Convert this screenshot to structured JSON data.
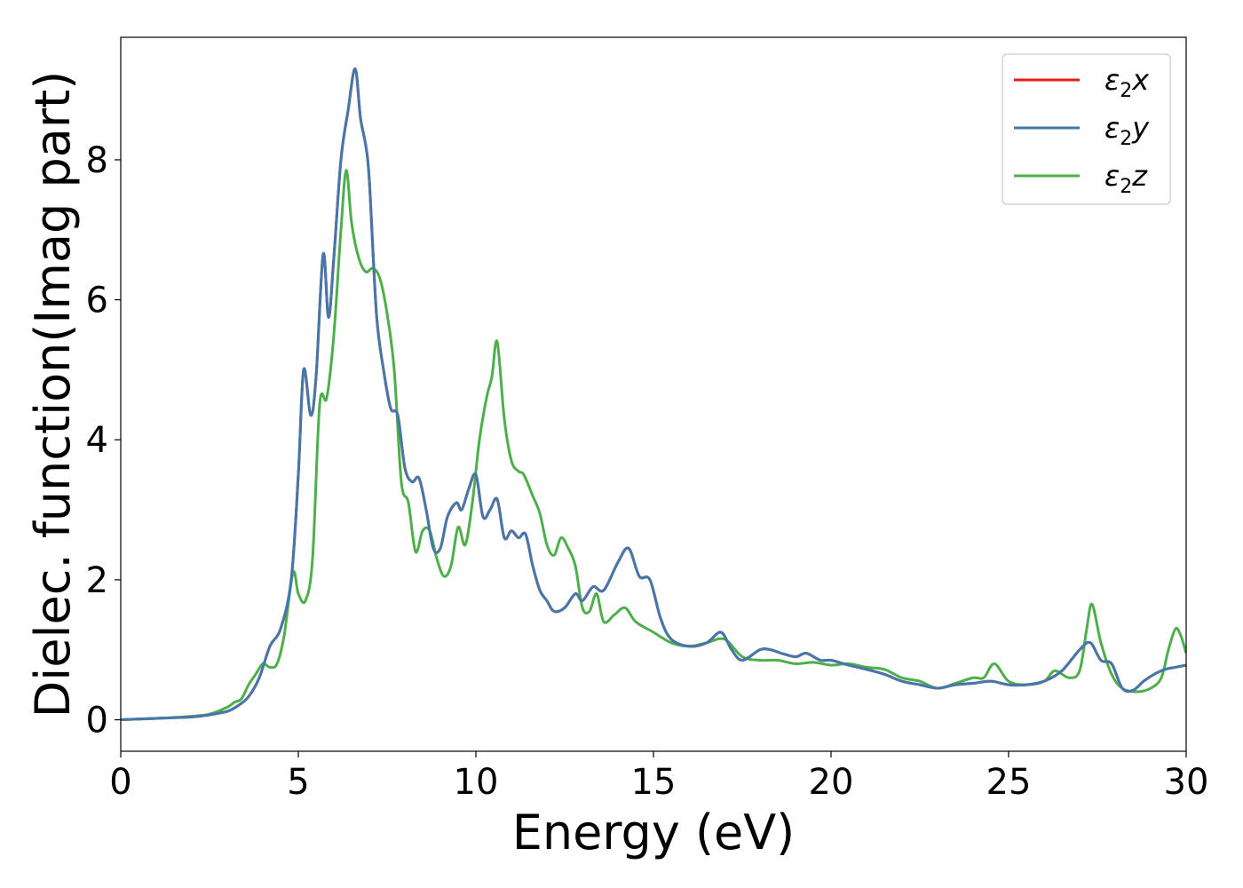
{
  "chart_data": {
    "type": "line",
    "xlabel": "Energy (eV)",
    "ylabel": "Dielec. function(Imag part)",
    "xlim": [
      0,
      30
    ],
    "ylim": [
      -0.45,
      9.75
    ],
    "xticks": [
      0,
      5,
      10,
      15,
      20,
      25,
      30
    ],
    "yticks": [
      0,
      2,
      4,
      6,
      8
    ],
    "grid": false,
    "legend_position": "top-right",
    "series": [
      {
        "name": "ε2x",
        "color": "#e41a1c",
        "legend_label": {
          "main": "ε",
          "sub": "2",
          "tail": "x"
        },
        "x": [
          0,
          1,
          2,
          2.5,
          3,
          3.3,
          3.6,
          3.9,
          4.2,
          4.5,
          4.8,
          5.0,
          5.15,
          5.35,
          5.5,
          5.7,
          5.85,
          6.0,
          6.2,
          6.4,
          6.6,
          6.75,
          6.9,
          7.0,
          7.2,
          7.4,
          7.6,
          7.8,
          8.0,
          8.2,
          8.4,
          8.6,
          8.8,
          9.0,
          9.2,
          9.45,
          9.6,
          9.8,
          10.0,
          10.2,
          10.4,
          10.6,
          10.8,
          11.0,
          11.2,
          11.4,
          11.6,
          11.8,
          12.0,
          12.2,
          12.5,
          12.8,
          13.0,
          13.3,
          13.6,
          14.0,
          14.3,
          14.6,
          14.9,
          15.2,
          15.5,
          16.0,
          16.5,
          16.9,
          17.2,
          17.5,
          18.0,
          18.3,
          18.6,
          19.0,
          19.3,
          19.7,
          20.0,
          20.5,
          21.0,
          21.5,
          22.0,
          22.5,
          23.0,
          23.5,
          24.0,
          24.5,
          25.0,
          25.5,
          26.0,
          26.5,
          27.0,
          27.3,
          27.6,
          27.9,
          28.2,
          28.5,
          28.8,
          29.1,
          29.4,
          29.7,
          30.0
        ],
        "values": [
          0,
          0.02,
          0.04,
          0.07,
          0.12,
          0.2,
          0.33,
          0.6,
          1.05,
          1.3,
          2.0,
          3.5,
          5.0,
          4.35,
          4.9,
          6.65,
          5.75,
          6.6,
          8.0,
          8.7,
          9.3,
          8.6,
          8.2,
          7.7,
          5.8,
          5.0,
          4.45,
          4.35,
          3.6,
          3.4,
          3.45,
          3.0,
          2.45,
          2.45,
          2.9,
          3.1,
          3.0,
          3.3,
          3.5,
          2.9,
          3.0,
          3.15,
          2.6,
          2.7,
          2.6,
          2.65,
          2.2,
          1.85,
          1.7,
          1.55,
          1.6,
          1.8,
          1.7,
          1.9,
          1.85,
          2.25,
          2.45,
          2.05,
          2.0,
          1.45,
          1.15,
          1.05,
          1.1,
          1.25,
          1.0,
          0.85,
          1.0,
          1.0,
          0.95,
          0.9,
          0.95,
          0.85,
          0.85,
          0.78,
          0.72,
          0.65,
          0.55,
          0.5,
          0.45,
          0.5,
          0.52,
          0.55,
          0.5,
          0.5,
          0.55,
          0.7,
          1.0,
          1.1,
          0.85,
          0.8,
          0.45,
          0.42,
          0.55,
          0.65,
          0.72,
          0.75,
          0.78
        ]
      },
      {
        "name": "ε2y",
        "color": "#4477aa",
        "legend_label": {
          "main": "ε",
          "sub": "2",
          "tail": "y"
        },
        "x": [
          0,
          1,
          2,
          2.5,
          3,
          3.3,
          3.6,
          3.9,
          4.2,
          4.5,
          4.8,
          5.0,
          5.15,
          5.35,
          5.5,
          5.7,
          5.85,
          6.0,
          6.2,
          6.4,
          6.6,
          6.75,
          6.9,
          7.0,
          7.2,
          7.4,
          7.6,
          7.8,
          8.0,
          8.2,
          8.4,
          8.6,
          8.8,
          9.0,
          9.2,
          9.45,
          9.6,
          9.8,
          10.0,
          10.2,
          10.4,
          10.6,
          10.8,
          11.0,
          11.2,
          11.4,
          11.6,
          11.8,
          12.0,
          12.2,
          12.5,
          12.8,
          13.0,
          13.3,
          13.6,
          14.0,
          14.3,
          14.6,
          14.9,
          15.2,
          15.5,
          16.0,
          16.5,
          16.9,
          17.2,
          17.5,
          18.0,
          18.3,
          18.6,
          19.0,
          19.3,
          19.7,
          20.0,
          20.5,
          21.0,
          21.5,
          22.0,
          22.5,
          23.0,
          23.5,
          24.0,
          24.5,
          25.0,
          25.5,
          26.0,
          26.5,
          27.0,
          27.3,
          27.6,
          27.9,
          28.2,
          28.5,
          28.8,
          29.1,
          29.4,
          29.7,
          30.0
        ],
        "values": [
          0,
          0.02,
          0.04,
          0.07,
          0.12,
          0.2,
          0.33,
          0.6,
          1.05,
          1.3,
          2.0,
          3.5,
          5.0,
          4.35,
          4.9,
          6.65,
          5.75,
          6.6,
          8.0,
          8.7,
          9.3,
          8.6,
          8.2,
          7.7,
          5.8,
          5.0,
          4.45,
          4.35,
          3.6,
          3.4,
          3.45,
          3.0,
          2.45,
          2.45,
          2.9,
          3.1,
          3.0,
          3.3,
          3.5,
          2.9,
          3.0,
          3.15,
          2.6,
          2.7,
          2.6,
          2.65,
          2.2,
          1.85,
          1.7,
          1.55,
          1.6,
          1.8,
          1.7,
          1.9,
          1.85,
          2.25,
          2.45,
          2.05,
          2.0,
          1.45,
          1.15,
          1.05,
          1.1,
          1.25,
          1.0,
          0.85,
          1.0,
          1.0,
          0.95,
          0.9,
          0.95,
          0.85,
          0.85,
          0.78,
          0.72,
          0.65,
          0.55,
          0.5,
          0.45,
          0.5,
          0.52,
          0.55,
          0.5,
          0.5,
          0.55,
          0.7,
          1.0,
          1.1,
          0.85,
          0.8,
          0.45,
          0.42,
          0.55,
          0.65,
          0.72,
          0.75,
          0.78
        ]
      },
      {
        "name": "ε2z",
        "color": "#4daf4a",
        "legend_label": {
          "main": "ε",
          "sub": "2",
          "tail": "z"
        },
        "x": [
          0,
          1,
          2,
          2.5,
          3.0,
          3.2,
          3.4,
          3.6,
          3.8,
          4.0,
          4.2,
          4.4,
          4.6,
          4.85,
          5.0,
          5.2,
          5.4,
          5.6,
          5.8,
          6.0,
          6.2,
          6.35,
          6.5,
          6.7,
          6.9,
          7.1,
          7.3,
          7.5,
          7.7,
          7.9,
          8.1,
          8.3,
          8.5,
          8.7,
          8.9,
          9.1,
          9.3,
          9.5,
          9.7,
          9.9,
          10.1,
          10.3,
          10.45,
          10.6,
          10.8,
          11.0,
          11.2,
          11.35,
          11.6,
          11.8,
          12.0,
          12.2,
          12.4,
          12.6,
          12.8,
          13.0,
          13.2,
          13.4,
          13.6,
          13.9,
          14.2,
          14.5,
          15.0,
          15.5,
          16.0,
          16.5,
          17.0,
          17.5,
          18.0,
          18.5,
          19.0,
          19.5,
          20.0,
          20.5,
          21.0,
          21.5,
          22.0,
          22.5,
          23.0,
          23.5,
          24.0,
          24.3,
          24.6,
          25.0,
          25.5,
          26.0,
          26.3,
          26.7,
          27.0,
          27.2,
          27.35,
          27.6,
          27.9,
          28.2,
          28.6,
          29.0,
          29.3,
          29.5,
          29.7,
          29.85,
          30.0
        ],
        "values": [
          0,
          0.02,
          0.05,
          0.08,
          0.18,
          0.25,
          0.3,
          0.5,
          0.65,
          0.8,
          0.75,
          0.8,
          1.2,
          2.1,
          1.8,
          1.7,
          2.3,
          4.5,
          4.6,
          5.5,
          7.0,
          7.85,
          7.1,
          6.6,
          6.4,
          6.45,
          6.3,
          5.8,
          5.0,
          3.4,
          3.1,
          2.4,
          2.7,
          2.7,
          2.3,
          2.05,
          2.2,
          2.75,
          2.5,
          3.1,
          4.0,
          4.6,
          4.9,
          5.4,
          4.3,
          3.7,
          3.55,
          3.5,
          3.2,
          2.95,
          2.5,
          2.35,
          2.6,
          2.45,
          2.2,
          1.6,
          1.55,
          1.8,
          1.4,
          1.5,
          1.6,
          1.4,
          1.25,
          1.1,
          1.05,
          1.1,
          1.15,
          0.9,
          0.85,
          0.85,
          0.8,
          0.82,
          0.78,
          0.8,
          0.75,
          0.72,
          0.6,
          0.55,
          0.45,
          0.52,
          0.6,
          0.6,
          0.8,
          0.55,
          0.5,
          0.55,
          0.7,
          0.6,
          0.7,
          1.3,
          1.65,
          1.1,
          0.65,
          0.45,
          0.4,
          0.45,
          0.6,
          1.0,
          1.3,
          1.2,
          0.95
        ]
      }
    ]
  }
}
